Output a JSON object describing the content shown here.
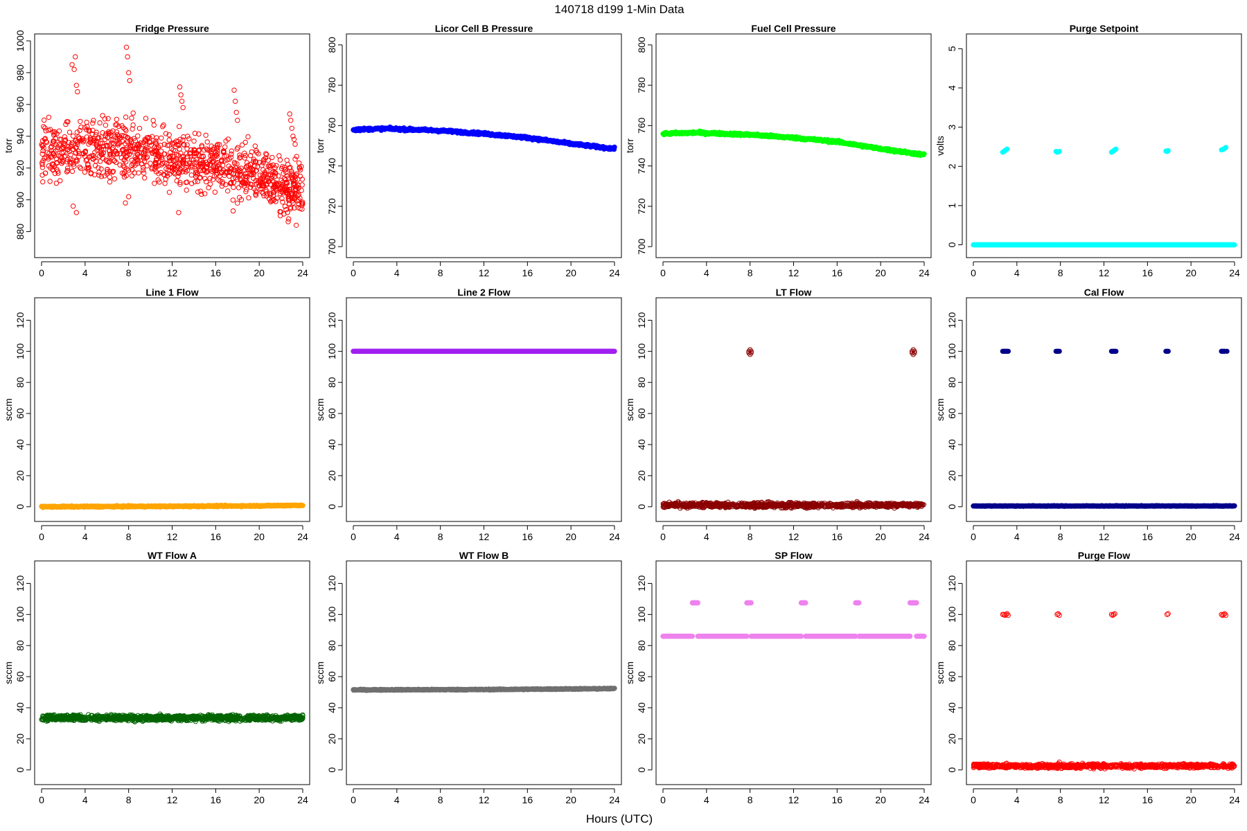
{
  "figure": {
    "title": "140718   d199   1-Min Data",
    "xlabel": "Hours (UTC)"
  },
  "chart_data": [
    {
      "type": "scatter",
      "title": "Fridge Pressure",
      "ylabel": "torr",
      "xlim": [
        0,
        24
      ],
      "ylim": [
        868,
        1000
      ],
      "xticks": [
        0,
        4,
        8,
        12,
        16,
        20,
        24
      ],
      "yticks": [
        880,
        900,
        920,
        940,
        960,
        980,
        1000
      ],
      "color": "#ff0000",
      "marker": "open-circle",
      "series": [
        {
          "kind": "noise",
          "x_start": 0,
          "x_end": 24,
          "n": 1100,
          "y_points": [
            [
              0,
              930
            ],
            [
              8,
              932
            ],
            [
              12,
              925
            ],
            [
              16,
              922
            ],
            [
              20,
              918
            ],
            [
              22,
              910
            ],
            [
              24,
              906
            ]
          ],
          "spread": 16
        },
        {
          "kind": "points",
          "x": [
            2.8,
            3.0,
            3.1,
            3.2,
            3.3,
            7.8,
            7.9,
            8.0,
            8.1,
            12.7,
            12.8,
            12.9,
            13.0,
            17.7,
            17.8,
            17.9,
            18.0,
            22.8,
            22.9,
            23.0,
            23.1,
            23.2,
            23.3,
            22.6,
            22.7,
            23.4,
            2.9,
            3.2,
            7.7,
            8.0,
            12.6,
            17.6
          ],
          "y": [
            985,
            982,
            990,
            972,
            968,
            996,
            990,
            980,
            975,
            971,
            966,
            962,
            958,
            969,
            962,
            955,
            950,
            954,
            950,
            945,
            940,
            938,
            935,
            892,
            888,
            884,
            896,
            892,
            898,
            902,
            892,
            893
          ]
        }
      ]
    },
    {
      "type": "scatter",
      "title": "Licor Cell B Pressure",
      "ylabel": "torr",
      "xlim": [
        0,
        24
      ],
      "ylim": [
        698,
        802
      ],
      "xticks": [
        0,
        4,
        8,
        12,
        16,
        20,
        24
      ],
      "yticks": [
        700,
        720,
        740,
        760,
        780,
        800
      ],
      "color": "#0000ff",
      "marker": "filled-circle",
      "series": [
        {
          "kind": "line",
          "x_start": 0,
          "x_end": 24,
          "n": 600,
          "y_points": [
            [
              0,
              758
            ],
            [
              3,
              758.5
            ],
            [
              8,
              757.5
            ],
            [
              12,
              756
            ],
            [
              16,
              754
            ],
            [
              20,
              751
            ],
            [
              24,
              748.5
            ]
          ],
          "spread": 0.6
        }
      ]
    },
    {
      "type": "scatter",
      "title": "Fuel Cell Pressure",
      "ylabel": "torr",
      "xlim": [
        0,
        24
      ],
      "ylim": [
        698,
        802
      ],
      "xticks": [
        0,
        4,
        8,
        12,
        16,
        20,
        24
      ],
      "yticks": [
        700,
        720,
        740,
        760,
        780,
        800
      ],
      "color": "#00ff00",
      "marker": "filled-circle",
      "series": [
        {
          "kind": "line",
          "x_start": 0,
          "x_end": 24,
          "n": 600,
          "y_points": [
            [
              0,
              756
            ],
            [
              3,
              756.5
            ],
            [
              8,
              755.5
            ],
            [
              12,
              754
            ],
            [
              16,
              752
            ],
            [
              20,
              748.5
            ],
            [
              24,
              745.5
            ]
          ],
          "spread": 0.6
        }
      ]
    },
    {
      "type": "scatter",
      "title": "Purge Setpoint",
      "ylabel": "volts",
      "xlim": [
        0,
        24
      ],
      "ylim": [
        -0.15,
        5.2
      ],
      "xticks": [
        0,
        4,
        8,
        12,
        16,
        20,
        24
      ],
      "yticks": [
        0,
        1,
        2,
        3,
        4,
        5
      ],
      "color": "#00ffff",
      "marker": "filled-circle",
      "series": [
        {
          "kind": "line",
          "x_start": 0,
          "x_end": 24,
          "n": 500,
          "y_points": [
            [
              0,
              0
            ],
            [
              24,
              0
            ]
          ],
          "spread": 0
        },
        {
          "kind": "points",
          "x": [
            2.7,
            2.8,
            2.9,
            3.0,
            3.1,
            7.6,
            7.7,
            7.8,
            7.9,
            12.7,
            12.8,
            12.9,
            13.0,
            13.1,
            17.7,
            17.8,
            17.9,
            22.8,
            22.9,
            23.0,
            23.1,
            23.2
          ],
          "y": [
            2.36,
            2.38,
            2.4,
            2.42,
            2.44,
            2.38,
            2.36,
            2.37,
            2.38,
            2.36,
            2.38,
            2.4,
            2.42,
            2.44,
            2.39,
            2.38,
            2.4,
            2.42,
            2.43,
            2.44,
            2.46,
            2.48
          ]
        }
      ]
    },
    {
      "type": "scatter",
      "title": "Line 1 Flow",
      "ylabel": "sccm",
      "xlim": [
        0,
        24
      ],
      "ylim": [
        -5,
        130
      ],
      "xticks": [
        0,
        4,
        8,
        12,
        16,
        20,
        24
      ],
      "yticks": [
        0,
        20,
        40,
        60,
        80,
        100,
        120
      ],
      "color": "#ffa500",
      "marker": "filled-circle",
      "series": [
        {
          "kind": "line",
          "x_start": 0,
          "x_end": 24,
          "n": 600,
          "y_points": [
            [
              0,
              0
            ],
            [
              12,
              0.3
            ],
            [
              20,
              0.6
            ],
            [
              24,
              1
            ]
          ],
          "spread": 0.4
        }
      ]
    },
    {
      "type": "scatter",
      "title": "Line 2 Flow",
      "ylabel": "sccm",
      "xlim": [
        0,
        24
      ],
      "ylim": [
        -5,
        130
      ],
      "xticks": [
        0,
        4,
        8,
        12,
        16,
        20,
        24
      ],
      "yticks": [
        0,
        20,
        40,
        60,
        80,
        100,
        120
      ],
      "color": "#a020f0",
      "marker": "filled-circle",
      "series": [
        {
          "kind": "line",
          "x_start": 0,
          "x_end": 24,
          "n": 600,
          "y_points": [
            [
              0,
              100
            ],
            [
              24,
              100
            ]
          ],
          "spread": 0
        }
      ]
    },
    {
      "type": "scatter",
      "title": "LT Flow",
      "ylabel": "sccm",
      "xlim": [
        0,
        24
      ],
      "ylim": [
        -5,
        130
      ],
      "xticks": [
        0,
        4,
        8,
        12,
        16,
        20,
        24
      ],
      "yticks": [
        0,
        20,
        40,
        60,
        80,
        100,
        120
      ],
      "color": "#8b0000",
      "marker": "open-circle",
      "series": [
        {
          "kind": "noise",
          "x_start": 0,
          "x_end": 24,
          "n": 900,
          "y_points": [
            [
              0,
              1
            ],
            [
              24,
              1
            ]
          ],
          "spread": 1.4
        },
        {
          "kind": "points",
          "x": [
            7.9,
            8.0,
            8.1,
            8.0,
            7.9,
            8.1,
            22.9,
            23.0,
            23.1,
            23.0,
            22.9,
            23.1
          ],
          "y": [
            100,
            101,
            100,
            98,
            99,
            99,
            100,
            101,
            100,
            98,
            99,
            99
          ]
        }
      ]
    },
    {
      "type": "scatter",
      "title": "Cal Flow",
      "ylabel": "sccm",
      "xlim": [
        0,
        24
      ],
      "ylim": [
        -5,
        130
      ],
      "xticks": [
        0,
        4,
        8,
        12,
        16,
        20,
        24
      ],
      "yticks": [
        0,
        20,
        40,
        60,
        80,
        100,
        120
      ],
      "color": "#00008b",
      "marker": "filled-circle",
      "series": [
        {
          "kind": "line",
          "x_start": 0,
          "x_end": 24,
          "n": 500,
          "y_points": [
            [
              0,
              0.5
            ],
            [
              24,
              0.5
            ]
          ],
          "spread": 0.2
        },
        {
          "kind": "points",
          "x": [
            2.7,
            2.8,
            2.9,
            3.0,
            3.1,
            3.2,
            7.6,
            7.7,
            7.8,
            7.9,
            12.7,
            12.8,
            12.9,
            13.0,
            13.1,
            17.7,
            17.8,
            17.9,
            22.8,
            22.9,
            23.0,
            23.1,
            23.3
          ],
          "y": [
            100,
            100,
            100,
            100,
            100,
            100,
            100,
            100,
            100,
            100,
            100,
            100,
            100,
            100,
            100,
            100,
            100,
            100,
            100,
            100,
            100,
            100,
            100
          ]
        }
      ]
    },
    {
      "type": "scatter",
      "title": "WT Flow A",
      "ylabel": "sccm",
      "xlim": [
        0,
        24
      ],
      "ylim": [
        -5,
        130
      ],
      "xticks": [
        0,
        4,
        8,
        12,
        16,
        20,
        24
      ],
      "yticks": [
        0,
        20,
        40,
        60,
        80,
        100,
        120
      ],
      "color": "#006400",
      "marker": "open-circle",
      "series": [
        {
          "kind": "noise",
          "x_start": 0,
          "x_end": 24,
          "n": 1100,
          "y_points": [
            [
              0,
              33.5
            ],
            [
              24,
              33.5
            ]
          ],
          "spread": 1.6
        }
      ]
    },
    {
      "type": "scatter",
      "title": "WT Flow B",
      "ylabel": "sccm",
      "xlim": [
        0,
        24
      ],
      "ylim": [
        -5,
        130
      ],
      "xticks": [
        0,
        4,
        8,
        12,
        16,
        20,
        24
      ],
      "yticks": [
        0,
        20,
        40,
        60,
        80,
        100,
        120
      ],
      "color": "#707070",
      "marker": "filled-circle",
      "series": [
        {
          "kind": "line",
          "x_start": 0,
          "x_end": 24,
          "n": 600,
          "y_points": [
            [
              0,
              51.5
            ],
            [
              12,
              51.7
            ],
            [
              24,
              52.3
            ]
          ],
          "spread": 0.3
        }
      ]
    },
    {
      "type": "scatter",
      "title": "SP Flow",
      "ylabel": "sccm",
      "xlim": [
        0,
        24
      ],
      "ylim": [
        -5,
        130
      ],
      "xticks": [
        0,
        4,
        8,
        12,
        16,
        20,
        24
      ],
      "yticks": [
        0,
        20,
        40,
        60,
        80,
        100,
        120
      ],
      "color": "#ee82ee",
      "marker": "filled-circle",
      "series": [
        {
          "kind": "segments",
          "y": 86,
          "ranges": [
            [
              0,
              2.7
            ],
            [
              3.2,
              7.7
            ],
            [
              8.1,
              12.7
            ],
            [
              13.1,
              17.7
            ],
            [
              18.0,
              22.7
            ],
            [
              23.3,
              24
            ]
          ],
          "n": 500
        },
        {
          "kind": "segments",
          "y": 107.5,
          "ranges": [
            [
              2.7,
              3.2
            ],
            [
              7.7,
              8.1
            ],
            [
              12.7,
              13.1
            ],
            [
              17.7,
              18.0
            ],
            [
              22.7,
              23.3
            ]
          ],
          "n": 60
        }
      ]
    },
    {
      "type": "scatter",
      "title": "Purge Flow",
      "ylabel": "sccm",
      "xlim": [
        0,
        24
      ],
      "ylim": [
        -5,
        130
      ],
      "xticks": [
        0,
        4,
        8,
        12,
        16,
        20,
        24
      ],
      "yticks": [
        0,
        20,
        40,
        60,
        80,
        100,
        120
      ],
      "color": "#ff0000",
      "marker": "open-circle",
      "series": [
        {
          "kind": "noise",
          "x_start": 0,
          "x_end": 24,
          "n": 900,
          "y_points": [
            [
              0,
              2.5
            ],
            [
              24,
              2.5
            ]
          ],
          "spread": 1.2
        },
        {
          "kind": "points",
          "x": [
            2.7,
            2.8,
            2.9,
            3.0,
            3.1,
            3.2,
            7.7,
            7.8,
            7.9,
            12.7,
            12.8,
            12.9,
            13.0,
            17.8,
            17.9,
            22.8,
            22.9,
            23.0,
            23.1,
            23.2,
            7.8,
            7.9
          ],
          "y": [
            100,
            100,
            99.5,
            100,
            100.5,
            99.5,
            100,
            100.5,
            99.5,
            100,
            99.5,
            100,
            100.5,
            100,
            100.5,
            100,
            99.5,
            100,
            100.5,
            99.5,
            4,
            5
          ]
        }
      ]
    }
  ]
}
